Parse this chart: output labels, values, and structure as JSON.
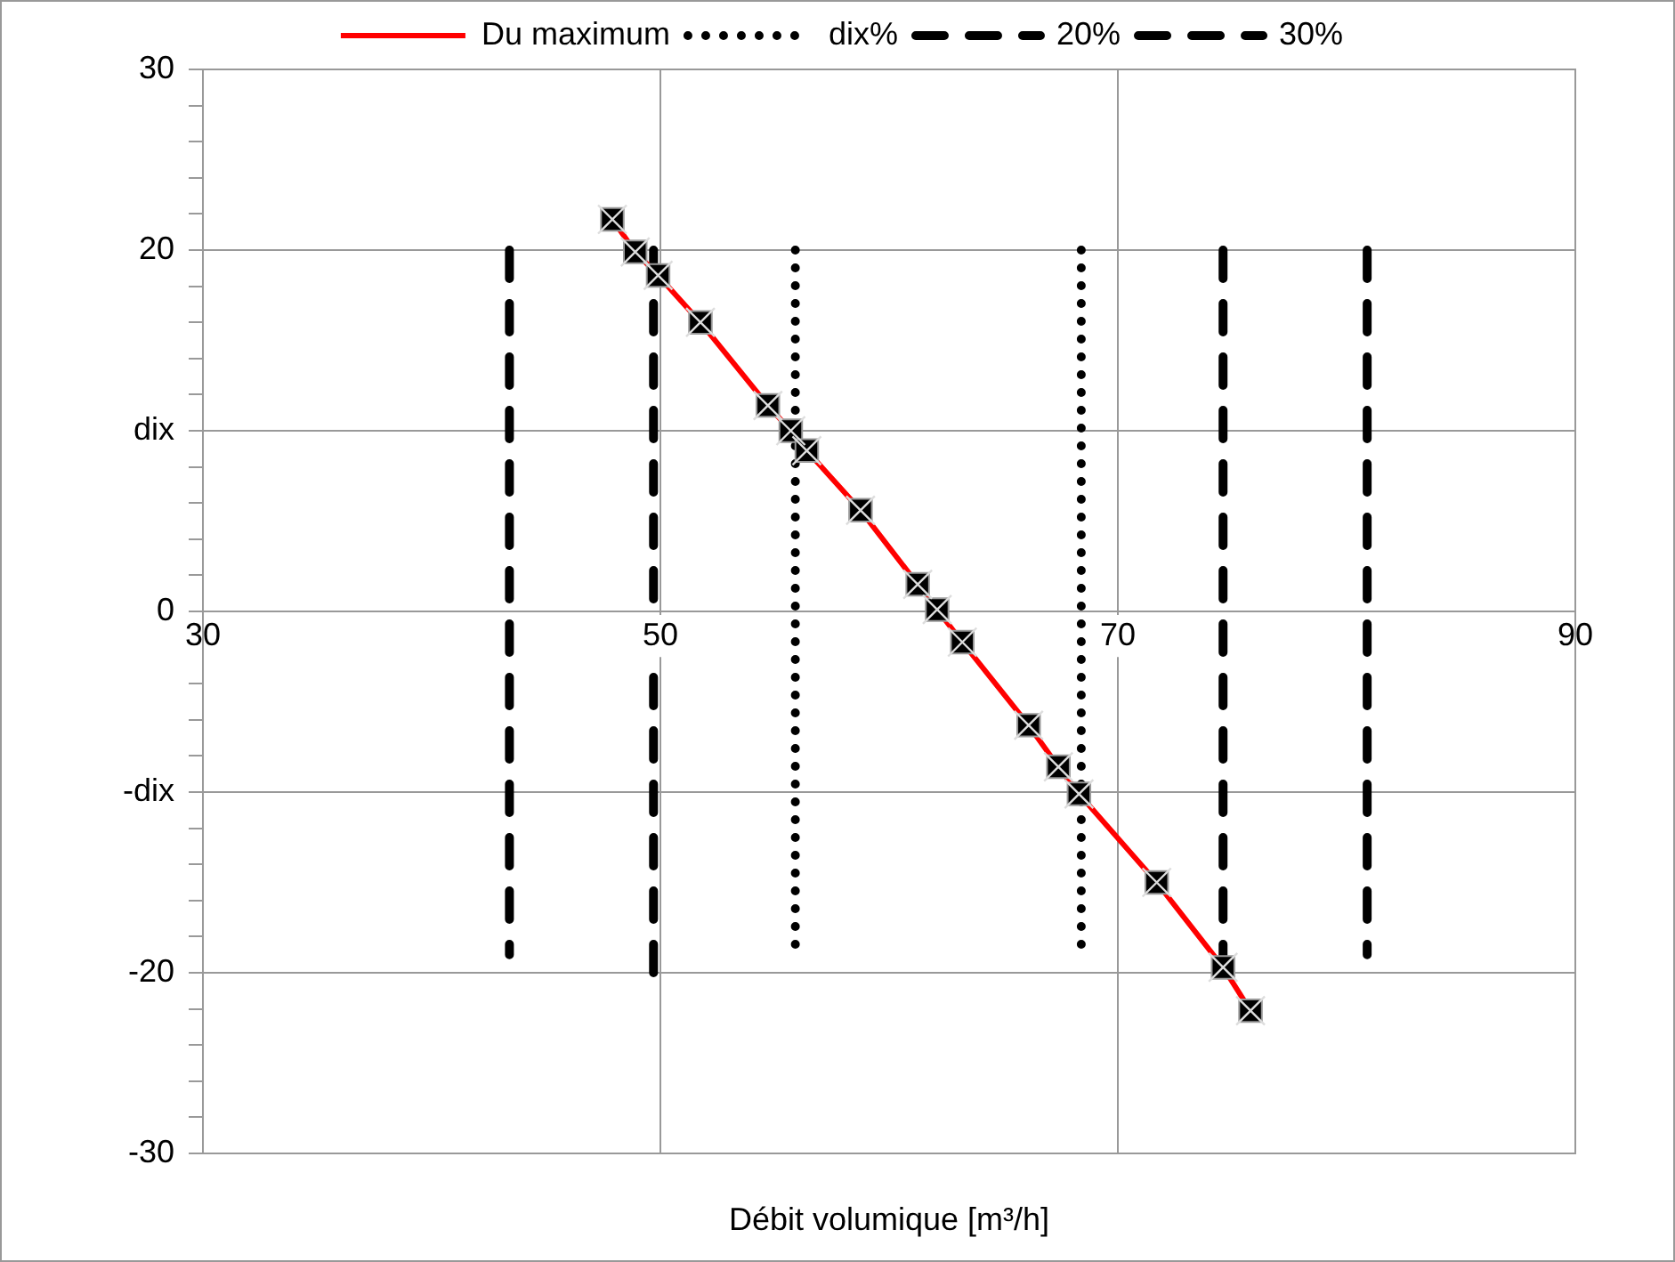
{
  "chart_data": {
    "type": "line",
    "xlabel": "Débit volumique [m³/h]",
    "legend": "top",
    "grid": true,
    "xlim": [
      30,
      90
    ],
    "xticks": [
      30,
      50,
      70,
      90
    ],
    "ylim": [
      -30,
      30
    ],
    "yticks": [
      -30,
      {
        "value": -28,
        "label": null
      },
      {
        "value": -26,
        "label": null
      },
      {
        "value": -24,
        "label": null
      },
      {
        "value": -22,
        "label": null
      },
      -20,
      {
        "value": -18,
        "label": null
      },
      {
        "value": -16,
        "label": null
      },
      {
        "value": -14,
        "label": null
      },
      {
        "value": -12,
        "label": null
      },
      {
        "value": -10,
        "label": "-dix"
      },
      {
        "value": -8,
        "label": null
      },
      {
        "value": -6,
        "label": null
      },
      {
        "value": -4,
        "label": null
      },
      {
        "value": -2,
        "label": null
      },
      0,
      {
        "value": 2,
        "label": null
      },
      {
        "value": 4,
        "label": null
      },
      {
        "value": 6,
        "label": null
      },
      {
        "value": 8,
        "label": null
      },
      {
        "value": 10,
        "label": "dix"
      },
      {
        "value": 12,
        "label": null
      },
      {
        "value": 14,
        "label": null
      },
      {
        "value": 16,
        "label": null
      },
      {
        "value": 18,
        "label": null
      },
      20,
      {
        "value": 22,
        "label": null
      },
      {
        "value": 24,
        "label": null
      },
      {
        "value": 26,
        "label": null
      },
      {
        "value": 28,
        "label": null
      },
      30
    ],
    "series": [
      {
        "name": "Du maximum",
        "color": "#ff0000",
        "marker": "square",
        "line_style": "solid",
        "x": [
          47.9,
          48.9,
          49.9,
          51.75,
          54.7,
          55.7,
          56.4,
          58.75,
          61.25,
          62.1,
          63.2,
          66.1,
          67.4,
          68.3,
          71.7,
          74.6,
          75.8
        ],
        "values": [
          21.7,
          19.9,
          18.6,
          16.0,
          11.4,
          10.0,
          8.9,
          5.6,
          1.5,
          0.1,
          -1.7,
          -6.3,
          -8.6,
          -10.1,
          -15.0,
          -19.7,
          -22.1
        ]
      },
      {
        "name": "dix%",
        "color": "#000000",
        "marker": "none",
        "line_style": "dotted",
        "x": [
          55.9,
          55.9
        ],
        "values": [
          20,
          -19
        ]
      },
      {
        "color": "#000000",
        "marker": "none",
        "line_style": "dotted",
        "x": [
          68.4,
          68.4
        ],
        "values": [
          20,
          -19
        ]
      },
      {
        "name": "20%",
        "color": "#000000",
        "marker": "none",
        "line_style": "dashed",
        "x": [
          49.7,
          49.7
        ],
        "values": [
          20,
          -20
        ]
      },
      {
        "color": "#000000",
        "marker": "none",
        "line_style": "dashed",
        "x": [
          74.6,
          74.6
        ],
        "values": [
          20,
          -20
        ]
      },
      {
        "name": "30%",
        "color": "#000000",
        "marker": "none",
        "line_style": "dashed",
        "x": [
          43.4,
          43.4
        ],
        "values": [
          20,
          -19
        ]
      },
      {
        "color": "#000000",
        "marker": "none",
        "line_style": "dashed",
        "x": [
          80.9,
          80.9
        ],
        "values": [
          20,
          -19
        ]
      }
    ]
  }
}
